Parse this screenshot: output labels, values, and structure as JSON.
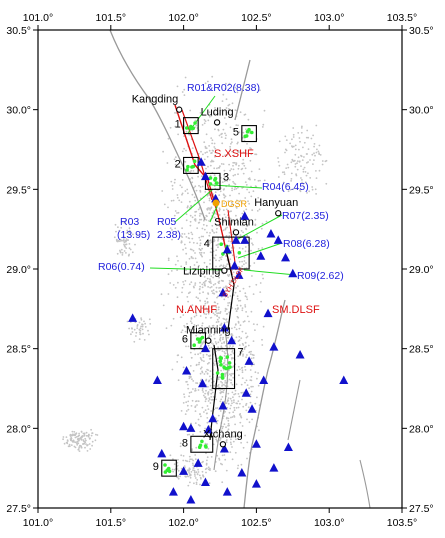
{
  "map": {
    "x_ticks": [
      {
        "lon": 101.0,
        "label": "101.0°"
      },
      {
        "lon": 101.5,
        "label": "101.5°"
      },
      {
        "lon": 102.0,
        "label": "102.0°"
      },
      {
        "lon": 102.5,
        "label": "102.5°"
      },
      {
        "lon": 103.0,
        "label": "103.0°"
      },
      {
        "lon": 103.5,
        "label": "103.5°"
      }
    ],
    "y_ticks": [
      {
        "lat": 30.5,
        "label": "30.5°"
      },
      {
        "lat": 30.0,
        "label": "30.0°"
      },
      {
        "lat": 29.5,
        "label": "29.5°"
      },
      {
        "lat": 29.0,
        "label": "29.0°"
      },
      {
        "lat": 28.5,
        "label": "28.5°"
      },
      {
        "lat": 28.0,
        "label": "28.0°"
      },
      {
        "lat": 27.5,
        "label": "27.5°"
      }
    ],
    "lon_range": [
      101.0,
      103.5
    ],
    "lat_range": [
      27.5,
      30.5
    ],
    "cities": [
      {
        "name": "Kangding",
        "lon": 101.97,
        "lat": 30.0
      },
      {
        "name": "Luding",
        "lon": 102.23,
        "lat": 29.92
      },
      {
        "name": "Shimian",
        "lon": 102.36,
        "lat": 29.23
      },
      {
        "name": "Hanyuan",
        "lon": 102.65,
        "lat": 29.35
      },
      {
        "name": "Lizi​ping",
        "lon": 102.28,
        "lat": 28.99
      },
      {
        "name": "Mianning",
        "lon": 102.17,
        "lat": 28.55
      },
      {
        "name": "Xichang",
        "lon": 102.27,
        "lat": 27.9
      }
    ],
    "boxes": [
      {
        "id": "1",
        "lon": [
          102.0,
          102.1
        ],
        "lat": [
          29.85,
          29.95
        ]
      },
      {
        "id": "2",
        "lon": [
          102.0,
          102.1
        ],
        "lat": [
          29.6,
          29.7
        ]
      },
      {
        "id": "3",
        "lon": [
          102.15,
          102.25
        ],
        "lat": [
          29.5,
          29.6
        ]
      },
      {
        "id": "4",
        "lon": [
          102.2,
          102.45
        ],
        "lat": [
          29.0,
          29.2
        ]
      },
      {
        "id": "5",
        "lon": [
          102.4,
          102.5
        ],
        "lat": [
          29.8,
          29.9
        ]
      },
      {
        "id": "6",
        "lon": [
          102.05,
          102.15
        ],
        "lat": [
          28.5,
          28.6
        ]
      },
      {
        "id": "7",
        "lon": [
          102.2,
          102.35
        ],
        "lat": [
          28.25,
          28.5
        ]
      },
      {
        "id": "8",
        "lon": [
          102.05,
          102.2
        ],
        "lat": [
          27.85,
          27.95
        ]
      },
      {
        "id": "9",
        "lon": [
          101.85,
          101.95
        ],
        "lat": [
          27.7,
          27.8
        ]
      }
    ],
    "station_labels": [
      {
        "text": "R01&R02(8.38)"
      },
      {
        "text": "R04(6.45)"
      },
      {
        "text": "R03"
      },
      {
        "text": "(13.95)"
      },
      {
        "text": "R05"
      },
      {
        "text": "2.38)"
      },
      {
        "text": "R07(2.35)"
      },
      {
        "text": "R08(6.28)"
      },
      {
        "text": "R06(0.74)"
      },
      {
        "text": "R09(2.62)"
      }
    ],
    "fault_labels": [
      {
        "text": "S.XSHF"
      },
      {
        "text": "N.ANHF"
      },
      {
        "text": "SM.DLSF"
      },
      {
        "text": "SYH.DLSF"
      }
    ],
    "site_label": "DGSR",
    "colors": {
      "fault_red": "#dd1111",
      "station_blue": "#1111cc",
      "link_green": "#22dd22",
      "site_orange": "#f0a000",
      "seismicity_gray": "#bbbbbb",
      "boundary_gray": "#999999"
    },
    "triangles": [
      [
        102.12,
        29.67
      ],
      [
        102.22,
        29.44
      ],
      [
        102.42,
        29.33
      ],
      [
        102.3,
        29.12
      ],
      [
        102.42,
        29.18
      ],
      [
        102.53,
        29.08
      ],
      [
        102.6,
        29.22
      ],
      [
        102.65,
        29.18
      ],
      [
        102.75,
        28.97
      ],
      [
        102.58,
        28.72
      ],
      [
        102.27,
        28.85
      ],
      [
        102.38,
        28.96
      ],
      [
        102.7,
        29.07
      ],
      [
        102.36,
        29.18
      ],
      [
        101.65,
        28.69
      ],
      [
        102.02,
        28.36
      ],
      [
        101.82,
        28.3
      ],
      [
        102.13,
        28.28
      ],
      [
        102.2,
        28.06
      ],
      [
        102.05,
        28.0
      ],
      [
        102.27,
        28.14
      ],
      [
        102.43,
        28.22
      ],
      [
        102.15,
        28.5
      ],
      [
        102.33,
        28.55
      ],
      [
        102.62,
        28.51
      ],
      [
        102.8,
        28.46
      ],
      [
        103.1,
        28.3
      ],
      [
        102.55,
        28.3
      ],
      [
        102.45,
        28.42
      ],
      [
        102.47,
        28.12
      ],
      [
        102.17,
        27.99
      ],
      [
        102.5,
        27.9
      ],
      [
        102.0,
        28.01
      ],
      [
        101.85,
        27.84
      ],
      [
        102.1,
        27.78
      ],
      [
        102.28,
        27.87
      ],
      [
        102.62,
        27.75
      ],
      [
        102.72,
        27.88
      ],
      [
        101.93,
        27.6
      ],
      [
        102.15,
        27.66
      ],
      [
        102.05,
        27.55
      ],
      [
        102.3,
        27.6
      ],
      [
        102.5,
        27.65
      ],
      [
        102.0,
        27.73
      ],
      [
        102.4,
        27.72
      ],
      [
        102.15,
        29.58
      ],
      [
        102.35,
        29.02
      ],
      [
        102.28,
        28.63
      ]
    ]
  }
}
